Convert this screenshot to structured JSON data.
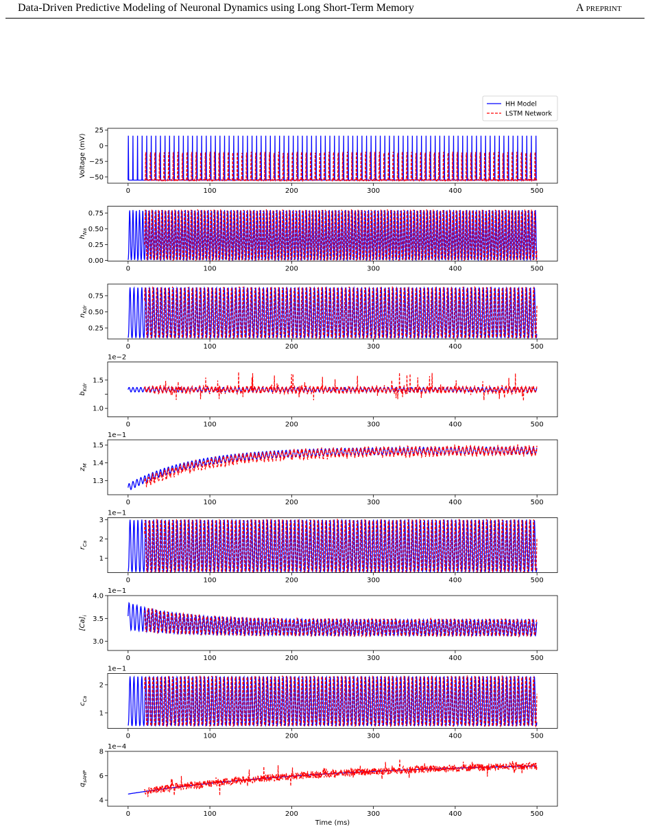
{
  "header": {
    "title": "Data-Driven Predictive Modeling of Neuronal Dynamics using Long Short-Term Memory",
    "tag": "A preprint"
  },
  "chart_data": {
    "type": "line",
    "xlabel": "Time (ms)",
    "xlim": [
      -25,
      525
    ],
    "xticks": [
      0,
      100,
      200,
      300,
      400,
      500
    ],
    "legend": {
      "placement": "top-right",
      "entries": [
        {
          "name": "HH Model",
          "color": "#0000ff",
          "style": "solid"
        },
        {
          "name": "LSTM Network",
          "color": "#ff0000",
          "style": "dashed"
        }
      ]
    },
    "panels": [
      {
        "key": "voltage",
        "ylabel": "Voltage (mV)",
        "scale_note": "",
        "ylim": [
          -60,
          28
        ],
        "yticks": [
          25,
          0,
          -25,
          -50
        ],
        "ytick_labels": [
          "25",
          "0",
          "−25",
          "−50"
        ],
        "kind": "spike",
        "base": -55,
        "peak": 22,
        "period": 5.6,
        "peak_frac": 0.1,
        "lstm_start": 20
      },
      {
        "key": "h_na",
        "ylabel": "h_Na",
        "scale_note": "",
        "ylim": [
          -0.01,
          0.86
        ],
        "yticks": [
          0.75,
          0.5,
          0.25,
          0.0
        ],
        "ytick_labels": [
          "0.75",
          "0.50",
          "0.25",
          "0.00"
        ],
        "kind": "wave",
        "base": 0.01,
        "peak": 0.8,
        "period": 4.0,
        "lstm_start": 20
      },
      {
        "key": "n_kdr",
        "ylabel": "n_Kdr",
        "scale_note": "",
        "ylim": [
          0.08,
          0.93
        ],
        "yticks": [
          0.75,
          0.5,
          0.25
        ],
        "ytick_labels": [
          "0.75",
          "0.50",
          "0.25"
        ],
        "kind": "wave",
        "base": 0.1,
        "peak": 0.88,
        "period": 4.8,
        "lstm_start": 20
      },
      {
        "key": "b_kdr",
        "ylabel": "b_Kdr",
        "scale_note": "1e−2",
        "ylim": [
          0.85,
          1.82
        ],
        "yticks": [
          1.5,
          1.25,
          1.0
        ],
        "ytick_labels": [
          "1.5",
          "",
          "1.0"
        ],
        "kind": "noisy",
        "base": 1.3,
        "amp": 0.04,
        "noise": 0.08,
        "lstm_start": 20
      },
      {
        "key": "z_m",
        "ylabel": "z_M",
        "scale_note": "1e−1",
        "ylim": [
          1.22,
          1.53
        ],
        "yticks": [
          1.5,
          1.4,
          1.3
        ],
        "ytick_labels": [
          "1.5",
          "1.4",
          "1.3"
        ],
        "kind": "rise",
        "start": 1.26,
        "end": 1.47,
        "tau": 80,
        "amp": 0.02,
        "lstm_start": 20
      },
      {
        "key": "r_ca",
        "ylabel": "r_Ca",
        "scale_note": "1e−1",
        "ylim": [
          0.25,
          3.1
        ],
        "yticks": [
          3,
          2,
          1
        ],
        "ytick_labels": [
          "3",
          "2",
          "1"
        ],
        "kind": "wave",
        "base": 0.3,
        "peak": 3.0,
        "period": 4.8,
        "lstm_start": 20
      },
      {
        "key": "ca",
        "ylabel": "[Ca]_i",
        "scale_note": "1e−1",
        "ylim": [
          2.8,
          4.0
        ],
        "yticks": [
          4.0,
          3.5,
          3.0
        ],
        "ytick_labels": [
          "4.0",
          "3.5",
          "3.0"
        ],
        "kind": "decay_osc",
        "center": 3.3,
        "amp_start": 0.6,
        "amp_end": 0.35,
        "period": 4.8,
        "lstm_start": 20
      },
      {
        "key": "c_ca",
        "ylabel": "c_Ca",
        "scale_note": "1e−1",
        "ylim": [
          0.45,
          2.4
        ],
        "yticks": [
          2,
          1
        ],
        "ytick_labels": [
          "2",
          "1"
        ],
        "kind": "wave",
        "base": 0.55,
        "peak": 2.3,
        "period": 4.8,
        "lstm_start": 20
      },
      {
        "key": "q_sahp",
        "ylabel": "q_sAHP",
        "scale_note": "1e−4",
        "ylim": [
          3.5,
          8.0
        ],
        "yticks": [
          8,
          6,
          4
        ],
        "ytick_labels": [
          "8",
          "6",
          "4"
        ],
        "kind": "drift",
        "start": 4.5,
        "end": 6.8,
        "noise": 0.6,
        "lstm_start": 20
      }
    ]
  }
}
